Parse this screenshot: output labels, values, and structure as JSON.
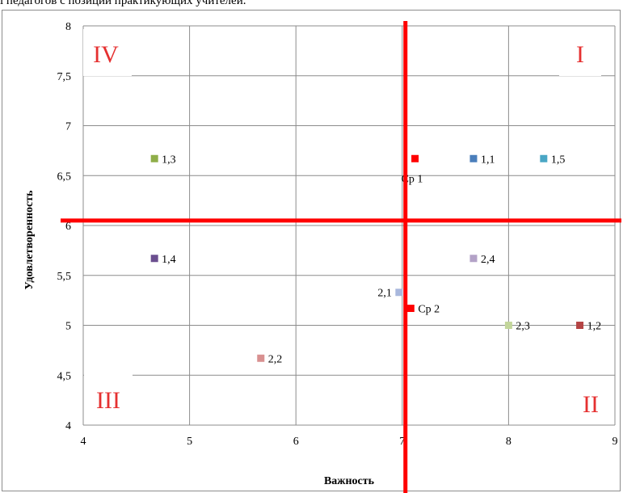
{
  "header": {
    "caption": "і педагогов с позиций практикующих учителей."
  },
  "chart_data": {
    "type": "scatter",
    "xlabel": "Важность",
    "ylabel": "Удовлетворенность",
    "xlim": [
      4,
      9
    ],
    "ylim": [
      4,
      8
    ],
    "x_ticks": [
      "4",
      "5",
      "6",
      "7",
      "8",
      "9"
    ],
    "y_ticks": [
      "4",
      "4,5",
      "5",
      "5,5",
      "6",
      "6,5",
      "7",
      "7,5",
      "8"
    ],
    "grid": true,
    "points": [
      {
        "label": "1,1",
        "x": 7.67,
        "y": 6.67,
        "color": "#4a7ebb"
      },
      {
        "label": "1,2",
        "x": 8.67,
        "y": 5.0,
        "color": "#b44444"
      },
      {
        "label": "1,3",
        "x": 4.67,
        "y": 6.67,
        "color": "#8fae49"
      },
      {
        "label": "1,4",
        "x": 4.67,
        "y": 5.67,
        "color": "#6b4f8f"
      },
      {
        "label": "1,5",
        "x": 8.33,
        "y": 6.67,
        "color": "#4aa6c5"
      },
      {
        "label": "2,1",
        "x": 6.97,
        "y": 5.33,
        "color": "#a9b8dd"
      },
      {
        "label": "2,2",
        "x": 5.67,
        "y": 4.67,
        "color": "#d89090"
      },
      {
        "label": "2,3",
        "x": 8.0,
        "y": 5.0,
        "color": "#c3d69b"
      },
      {
        "label": "2,4",
        "x": 7.67,
        "y": 5.67,
        "color": "#b3a2c7"
      },
      {
        "label": "Ср 1",
        "x": 7.12,
        "y": 6.67,
        "color": "#ff0000"
      },
      {
        "label": "Ср 2",
        "x": 7.08,
        "y": 5.17,
        "color": "#ff0000"
      }
    ],
    "divider_x": 7.03,
    "divider_y": 6.05,
    "divider_color": "#ff0000",
    "quadrants": {
      "I": "I",
      "II": "II",
      "III": "III",
      "IV": "IV"
    }
  }
}
